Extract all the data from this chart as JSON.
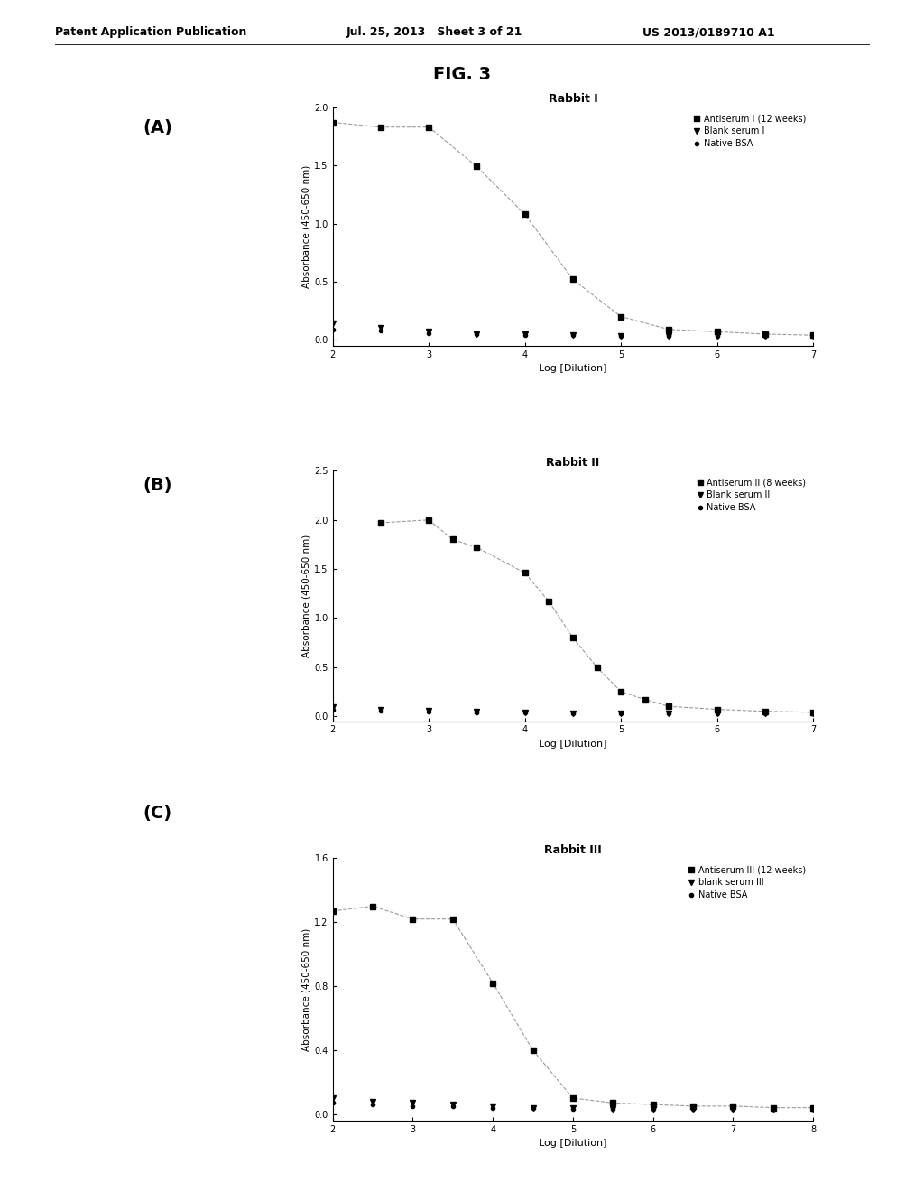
{
  "header_left": "Patent Application Publication",
  "header_mid": "Jul. 25, 2013   Sheet 3 of 21",
  "header_right": "US 2013/0189710 A1",
  "fig_label": "FIG. 3",
  "panel_labels": [
    "(A)",
    "(B)",
    "(C)"
  ],
  "plots": [
    {
      "title": "Rabbit I",
      "xlabel": "Log [Dilution]",
      "ylabel": "Absorbance (450-650 nm)",
      "ylim": [
        -0.05,
        2.0
      ],
      "yticks": [
        0.0,
        0.5,
        1.0,
        1.5,
        2.0
      ],
      "yticklabels": [
        "0.0",
        "0.5",
        "1.0",
        "1.5",
        "2.0"
      ],
      "xlim": [
        2,
        7
      ],
      "xticks": [
        2,
        3,
        4,
        5,
        6,
        7
      ],
      "legend": [
        "Antiserum I (12 weeks)",
        "Blank serum I",
        "Native BSA"
      ],
      "antiserum_x": [
        2,
        2.5,
        3,
        3.5,
        4,
        4.5,
        5,
        5.5,
        6,
        6.5,
        7
      ],
      "antiserum_y": [
        1.87,
        1.83,
        1.83,
        1.49,
        1.08,
        0.52,
        0.2,
        0.09,
        0.07,
        0.05,
        0.04
      ],
      "blank_x": [
        2,
        2.5,
        3,
        3.5,
        4,
        4.5,
        5,
        5.5,
        6,
        6.5,
        7
      ],
      "blank_y": [
        0.14,
        0.1,
        0.07,
        0.05,
        0.05,
        0.04,
        0.03,
        0.03,
        0.03,
        0.03,
        0.03
      ],
      "native_x": [
        2,
        2.5,
        3,
        3.5,
        4,
        4.5,
        5,
        5.5,
        6,
        6.5,
        7
      ],
      "native_y": [
        0.09,
        0.08,
        0.06,
        0.05,
        0.04,
        0.04,
        0.03,
        0.03,
        0.03,
        0.03,
        0.03
      ]
    },
    {
      "title": "Rabbit II",
      "xlabel": "Log [Dilution]",
      "ylabel": "Absorbance (450-650 nm)",
      "ylim": [
        -0.05,
        2.5
      ],
      "yticks": [
        0.0,
        0.5,
        1.0,
        1.5,
        2.0,
        2.5
      ],
      "yticklabels": [
        "0.0",
        "0.5",
        "1.0",
        "1.5",
        "2.0",
        "2.5"
      ],
      "xlim": [
        2,
        7
      ],
      "xticks": [
        2,
        3,
        4,
        5,
        6,
        7
      ],
      "legend": [
        "Antiserum II (8 weeks)",
        "Blank serum II",
        "Native BSA"
      ],
      "antiserum_x": [
        2.5,
        3,
        3.25,
        3.5,
        4,
        4.25,
        4.5,
        4.75,
        5,
        5.25,
        5.5,
        6,
        6.5,
        7
      ],
      "antiserum_y": [
        1.97,
        2.0,
        1.8,
        1.72,
        1.46,
        1.17,
        0.8,
        0.5,
        0.25,
        0.17,
        0.1,
        0.07,
        0.05,
        0.04
      ],
      "blank_x": [
        2,
        2.5,
        3,
        3.5,
        4,
        4.5,
        5,
        5.5,
        6,
        6.5,
        7
      ],
      "blank_y": [
        0.09,
        0.07,
        0.06,
        0.05,
        0.04,
        0.03,
        0.03,
        0.03,
        0.03,
        0.03,
        0.03
      ],
      "native_x": [
        2,
        2.5,
        3,
        3.5,
        4,
        4.5,
        5,
        5.5,
        6,
        6.5,
        7
      ],
      "native_y": [
        0.07,
        0.06,
        0.05,
        0.04,
        0.04,
        0.03,
        0.03,
        0.03,
        0.03,
        0.03,
        0.03
      ]
    },
    {
      "title": "Rabbit III",
      "xlabel": "Log [Dilution]",
      "ylabel": "Absorbance (450-650 nm)",
      "ylim": [
        -0.04,
        1.6
      ],
      "yticks": [
        0.0,
        0.4,
        0.8,
        1.2,
        1.6
      ],
      "yticklabels": [
        "0.0",
        "0.4",
        "0.8",
        "1.2",
        "1.6"
      ],
      "xlim": [
        2,
        8
      ],
      "xticks": [
        2,
        3,
        4,
        5,
        6,
        7,
        8
      ],
      "legend": [
        "Antiserum III (12 weeks)",
        "blank serum III",
        "Native BSA"
      ],
      "antiserum_x": [
        2,
        2.5,
        3,
        3.5,
        4,
        4.5,
        5,
        5.5,
        6,
        6.5,
        7,
        7.5,
        8
      ],
      "antiserum_y": [
        1.27,
        1.3,
        1.22,
        1.22,
        0.82,
        0.4,
        0.1,
        0.07,
        0.06,
        0.05,
        0.05,
        0.04,
        0.04
      ],
      "blank_x": [
        2,
        2.5,
        3,
        3.5,
        4,
        4.5,
        5,
        5.5,
        6,
        6.5,
        7,
        7.5,
        8
      ],
      "blank_y": [
        0.1,
        0.08,
        0.07,
        0.06,
        0.05,
        0.04,
        0.04,
        0.03,
        0.03,
        0.03,
        0.03,
        0.03,
        0.03
      ],
      "native_x": [
        2,
        2.5,
        3,
        3.5,
        4,
        4.5,
        5,
        5.5,
        6,
        6.5,
        7,
        7.5,
        8
      ],
      "native_y": [
        0.07,
        0.06,
        0.05,
        0.05,
        0.04,
        0.04,
        0.03,
        0.03,
        0.03,
        0.03,
        0.03,
        0.03,
        0.03
      ]
    }
  ],
  "marker_antiserum": "s",
  "marker_blank": "v",
  "marker_native": "o",
  "marker_size": 4,
  "line_color": "#999999",
  "marker_color": "#000000",
  "bg_color": "#ffffff"
}
